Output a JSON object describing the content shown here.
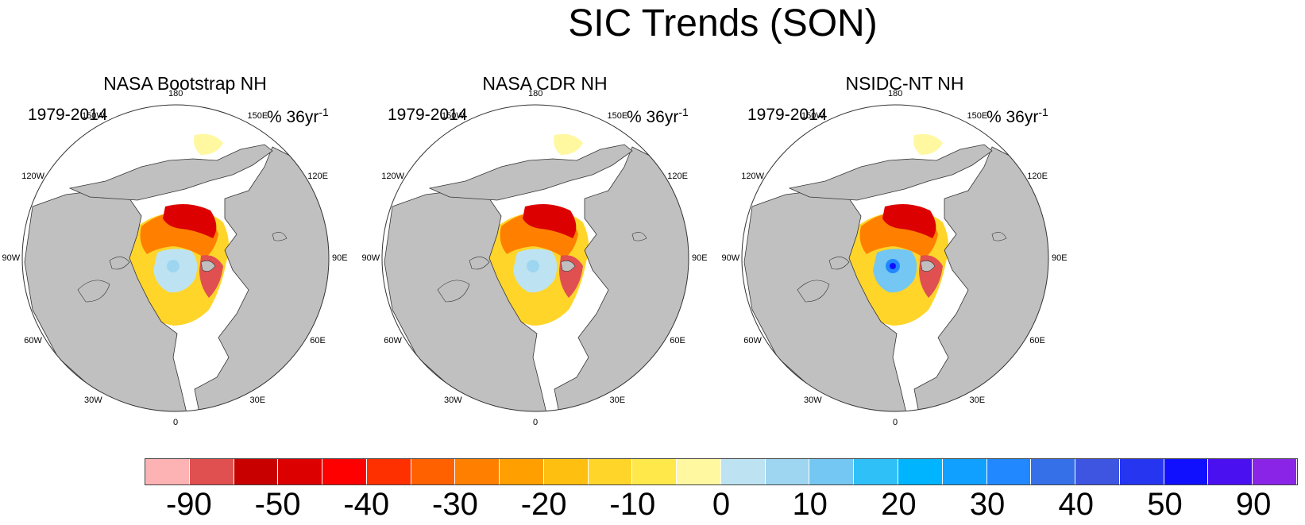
{
  "title": "SIC Trends (SON)",
  "panels": [
    {
      "title": "NASA Bootstrap NH",
      "period": "1979-2014",
      "units": "% 36yr",
      "units_sup": "-1"
    },
    {
      "title": "NASA CDR NH",
      "period": "1979-2014",
      "units": "% 36yr",
      "units_sup": "-1"
    },
    {
      "title": "NSIDC-NT NH",
      "period": "1979-2014",
      "units": "% 36yr",
      "units_sup": "-1"
    }
  ],
  "lon_labels": [
    "180",
    "150E",
    "120E",
    "90E",
    "60E",
    "30E",
    "0",
    "30W",
    "60W",
    "90W",
    "120W",
    "150W"
  ],
  "colorbar": {
    "colors": [
      "#fdb2b3",
      "#e05050",
      "#c80000",
      "#dc0000",
      "#ff0000",
      "#ff3000",
      "#ff6000",
      "#ff8000",
      "#ffa000",
      "#ffbf10",
      "#ffd52a",
      "#ffe84a",
      "#fff8a0",
      "#bde3f2",
      "#9ed5f0",
      "#74c7f2",
      "#30c0f8",
      "#00b4ff",
      "#10a0ff",
      "#2288ff",
      "#3570e8",
      "#3d55e0",
      "#2535f0",
      "#1010ff",
      "#4a10f0",
      "#8a25e8"
    ],
    "labels": [
      "-90",
      "-50",
      "-40",
      "-30",
      "-20",
      "-10",
      "0",
      "10",
      "20",
      "30",
      "40",
      "50",
      "90"
    ]
  }
}
